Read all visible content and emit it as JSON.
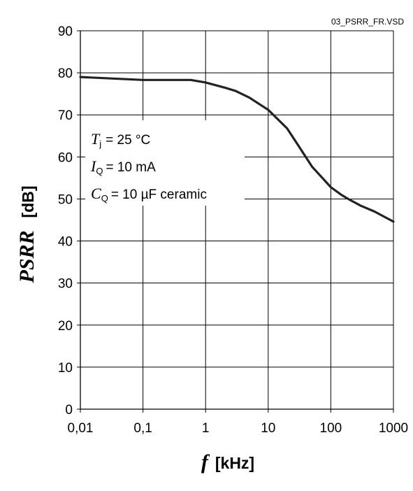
{
  "file_name": "03_PSRR_FR.VSD",
  "chart_data": {
    "type": "line",
    "x_scale": "log",
    "xlim": [
      0.01,
      1000
    ],
    "ylim": [
      0,
      90
    ],
    "grid": true,
    "x_ticks": [
      "0,01",
      "0,1",
      "1",
      "10",
      "100",
      "1000"
    ],
    "y_ticks": [
      "0",
      "10",
      "20",
      "30",
      "40",
      "50",
      "60",
      "70",
      "80",
      "90"
    ],
    "xlabel": {
      "symbol": "f",
      "unit": "[kHz]"
    },
    "ylabel": {
      "symbol": "PSRR",
      "unit": "[dB]"
    },
    "annotations": [
      {
        "symbol": "T",
        "sub": "j",
        "text": "= 25 °C"
      },
      {
        "symbol": "I",
        "sub": "Q",
        "text": "= 10 mA"
      },
      {
        "symbol": "C",
        "sub": "Q",
        "text": "= 10 µF ceramic"
      }
    ],
    "series": [
      {
        "x": [
          0.01,
          0.1,
          0.2,
          0.58,
          1,
          2,
          3,
          5,
          10,
          20,
          30,
          50,
          100,
          150,
          200,
          300,
          500,
          1000
        ],
        "y": [
          79,
          78.3,
          78.3,
          78.3,
          77.7,
          76.5,
          75.7,
          74.1,
          71.2,
          66.8,
          62.8,
          57.7,
          52.8,
          50.9,
          49.8,
          48.4,
          47,
          44.6
        ]
      }
    ]
  }
}
